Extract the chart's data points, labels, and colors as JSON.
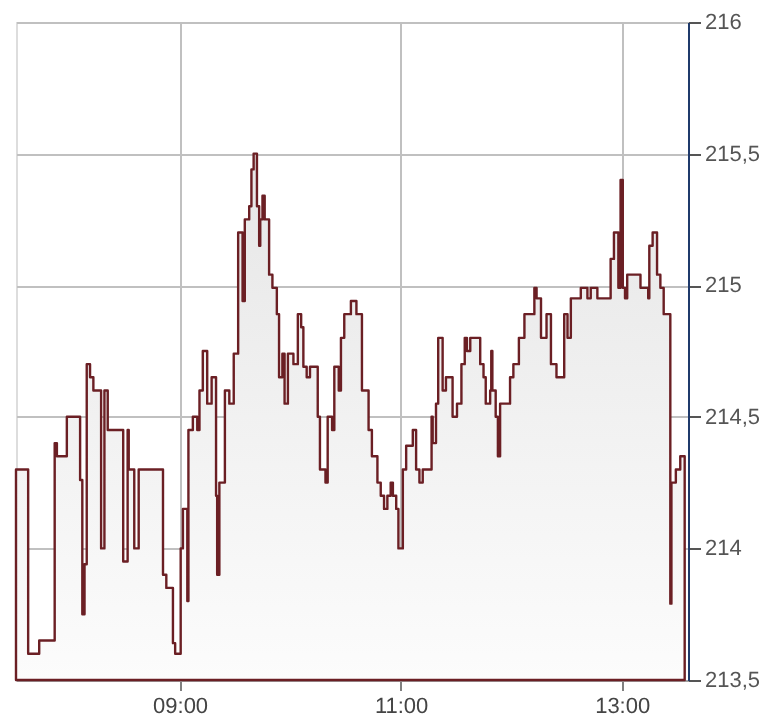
{
  "chart_data": {
    "type": "area",
    "xlim": [
      7.52,
      13.6
    ],
    "xticks": [
      {
        "value": 9,
        "label": "09:00"
      },
      {
        "value": 11,
        "label": "11:00"
      },
      {
        "value": 13,
        "label": "13:00"
      }
    ],
    "ylim": [
      213.5,
      216
    ],
    "yticks": [
      {
        "value": 213.5,
        "label": "213,5"
      },
      214,
      {
        "value": 214.5,
        "label": "214,5"
      },
      215,
      {
        "value": 215.5,
        "label": "215,5"
      },
      216
    ],
    "grid": true,
    "legend": false,
    "series": [
      {
        "color": "#6b1f24",
        "x": [
          7.52,
          7.63,
          7.73,
          7.87,
          7.89,
          7.98,
          8.1,
          8.12,
          8.14,
          8.16,
          8.19,
          8.22,
          8.29,
          8.32,
          8.35,
          8.49,
          8.53,
          8.54,
          8.59,
          8.63,
          8.85,
          8.88,
          8.94,
          8.96,
          9.01,
          9.03,
          9.07,
          9.08,
          9.12,
          9.16,
          9.18,
          9.21,
          9.25,
          9.29,
          9.33,
          9.34,
          9.36,
          9.41,
          9.45,
          9.49,
          9.53,
          9.57,
          9.59,
          9.63,
          9.65,
          9.67,
          9.7,
          9.72,
          9.73,
          9.75,
          9.77,
          9.81,
          9.84,
          9.88,
          9.9,
          9.93,
          9.95,
          9.98,
          10.03,
          10.07,
          10.1,
          10.12,
          10.15,
          10.18,
          10.25,
          10.27,
          10.32,
          10.34,
          10.38,
          10.4,
          10.44,
          10.46,
          10.49,
          10.55,
          10.6,
          10.65,
          10.71,
          10.74,
          10.79,
          10.82,
          10.85,
          10.88,
          10.91,
          10.93,
          10.96,
          10.98,
          11.02,
          11.05,
          11.11,
          11.14,
          11.17,
          11.2,
          11.28,
          11.29,
          11.32,
          11.34,
          11.38,
          11.41,
          11.47,
          11.51,
          11.55,
          11.58,
          11.6,
          11.63,
          11.72,
          11.75,
          11.77,
          11.81,
          11.82,
          11.83,
          11.86,
          11.88,
          11.9,
          11.99,
          12.02,
          12.07,
          12.12,
          12.21,
          12.23,
          12.27,
          12.32,
          12.36,
          12.41,
          12.48,
          12.51,
          12.54,
          12.63,
          12.69,
          12.72,
          12.78,
          12.9,
          12.93,
          12.97,
          12.99,
          13.01,
          13.03,
          13.05,
          13.17,
          13.24,
          13.25,
          13.28,
          13.32,
          13.35,
          13.38,
          13.44,
          13.45,
          13.49,
          13.53,
          13.57
        ],
        "values": [
          214.3,
          213.6,
          213.65,
          214.4,
          214.35,
          214.5,
          214.26,
          213.75,
          213.94,
          214.7,
          214.65,
          214.6,
          214.0,
          214.6,
          214.45,
          213.95,
          214.45,
          214.3,
          214.0,
          214.3,
          213.9,
          213.85,
          213.64,
          213.6,
          214.0,
          214.15,
          213.8,
          214.45,
          214.5,
          214.45,
          214.6,
          214.75,
          214.55,
          214.65,
          214.2,
          213.9,
          214.25,
          214.6,
          214.55,
          214.74,
          215.2,
          214.94,
          215.25,
          215.3,
          215.44,
          215.5,
          215.3,
          215.15,
          215.25,
          215.34,
          215.25,
          215.04,
          214.99,
          214.89,
          214.65,
          214.74,
          214.55,
          214.74,
          214.7,
          214.89,
          214.84,
          214.69,
          214.65,
          214.69,
          214.5,
          214.3,
          214.25,
          214.5,
          214.45,
          214.69,
          214.6,
          214.8,
          214.89,
          214.94,
          214.89,
          214.6,
          214.45,
          214.35,
          214.25,
          214.2,
          214.15,
          214.2,
          214.25,
          214.2,
          214.15,
          214.0,
          214.3,
          214.39,
          214.45,
          214.3,
          214.25,
          214.3,
          214.5,
          214.4,
          214.55,
          214.8,
          214.6,
          214.65,
          214.5,
          214.55,
          214.7,
          214.8,
          214.75,
          214.8,
          214.7,
          214.65,
          214.55,
          214.6,
          214.75,
          214.6,
          214.5,
          214.35,
          214.55,
          214.65,
          214.7,
          214.8,
          214.89,
          214.99,
          214.95,
          214.8,
          214.89,
          214.7,
          214.65,
          214.89,
          214.8,
          214.95,
          214.99,
          214.95,
          214.99,
          214.95,
          215.1,
          215.2,
          214.99,
          215.4,
          214.99,
          214.95,
          215.04,
          214.99,
          214.95,
          215.15,
          215.2,
          215.04,
          214.99,
          214.89,
          213.79,
          214.25,
          214.3,
          214.35,
          214.2
        ]
      }
    ]
  }
}
